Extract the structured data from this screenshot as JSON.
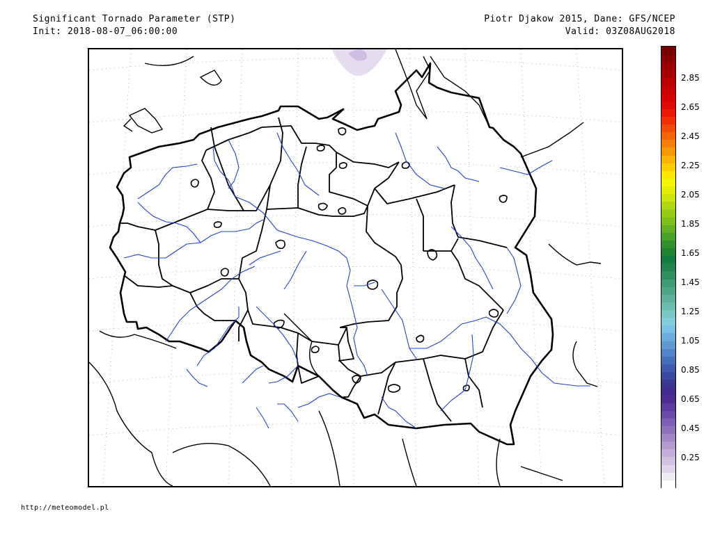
{
  "header": {
    "title": "Significant Tornado Parameter (STP)",
    "init": "Init: 2018-08-07_06:00:00",
    "credit": "Piotr Djakow 2015, Dane: GFS/NCEP",
    "valid": "Valid: 03Z08AUG2018"
  },
  "footer": {
    "url": "http://meteomodel.pl"
  },
  "map": {
    "region": "Poland",
    "colors": {
      "border": "#000000",
      "rivers": "#1f3fe0",
      "grid": "#b0b0b0",
      "stp_blob": "#d8c8e8"
    }
  },
  "legend": {
    "labels": [
      "2.85",
      "2.65",
      "2.45",
      "2.25",
      "2.05",
      "1.85",
      "1.65",
      "1.45",
      "1.25",
      "1.05",
      "0.85",
      "0.65",
      "0.45",
      "0.25"
    ],
    "colors": [
      "#ffffff",
      "#eeeaf2",
      "#e0d6ea",
      "#d2c2e2",
      "#c2aed8",
      "#b39ad0",
      "#a286c6",
      "#9072bc",
      "#7e5eb2",
      "#6c4aa8",
      "#5c3a9e",
      "#4e2c94",
      "#3f2c8e",
      "#3a3890",
      "#3a4aa0",
      "#3e5cb0",
      "#4670be",
      "#5284c8",
      "#5e98d2",
      "#6cacdc",
      "#78c0e4",
      "#7ecdd8",
      "#7ac6c4",
      "#6cbcae",
      "#5eb29a",
      "#4ea686",
      "#3e9a72",
      "#2e8e5e",
      "#208450",
      "#147c40",
      "#1e8430",
      "#30902a",
      "#48a026",
      "#62b020",
      "#7cc01a",
      "#96cc14",
      "#b0d810",
      "#cae40c",
      "#e2ee08",
      "#f4f404",
      "#fce600",
      "#fccc00",
      "#fab200",
      "#f89800",
      "#f67e00",
      "#f46400",
      "#f24a00",
      "#f03000",
      "#ee1800",
      "#e40a00",
      "#d80000",
      "#c80000",
      "#b80000",
      "#a80000",
      "#980000",
      "#880000",
      "#780000"
    ]
  }
}
